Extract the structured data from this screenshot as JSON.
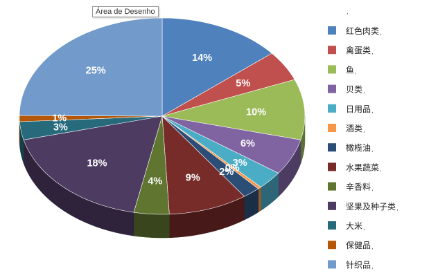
{
  "tooltip": "Área de Desenho",
  "chart_data": {
    "type": "pie",
    "title": "",
    "legend_position": "right",
    "legend_header": ",",
    "slices": [
      {
        "label": "红色肉类",
        "value": 14,
        "display": "14%",
        "color": "#4f81bd",
        "side": "#2f4d71"
      },
      {
        "label": "禽蛋类",
        "value": 5,
        "display": "5%",
        "color": "#c0504d",
        "side": "#73302e"
      },
      {
        "label": "鱼",
        "value": 10,
        "display": "10%",
        "color": "#9bbb59",
        "side": "#5d7035"
      },
      {
        "label": "贝类",
        "value": 6,
        "display": "6%",
        "color": "#8064a2",
        "side": "#4d3c61"
      },
      {
        "label": "日用品",
        "value": 3,
        "display": "3%",
        "color": "#4bacc6",
        "side": "#2d6777"
      },
      {
        "label": "酒类",
        "value": 0.4,
        "display": "0%",
        "color": "#f79646",
        "side": "#945a2a"
      },
      {
        "label": "橄榄油",
        "value": 2,
        "display": "2%",
        "color": "#2c4d75",
        "side": "#1a2e46"
      },
      {
        "label": "水果蔬菜",
        "value": 9,
        "display": "9%",
        "color": "#772c2a",
        "side": "#471a19"
      },
      {
        "label": "辛香料",
        "value": 4,
        "display": "4%",
        "color": "#5f7530",
        "side": "#39461d"
      },
      {
        "label": "坚果及种子类",
        "value": 18,
        "display": "18%",
        "color": "#4d3b62",
        "side": "#2e233b"
      },
      {
        "label": "大米",
        "value": 3,
        "display": "3%",
        "color": "#276a7c",
        "side": "#174049"
      },
      {
        "label": "保健品",
        "value": 1,
        "display": "1%",
        "color": "#b65708",
        "side": "#6d3405"
      },
      {
        "label": "针织品",
        "value": 25,
        "display": "25%",
        "color": "#729aca",
        "side": "#445c79"
      }
    ]
  }
}
